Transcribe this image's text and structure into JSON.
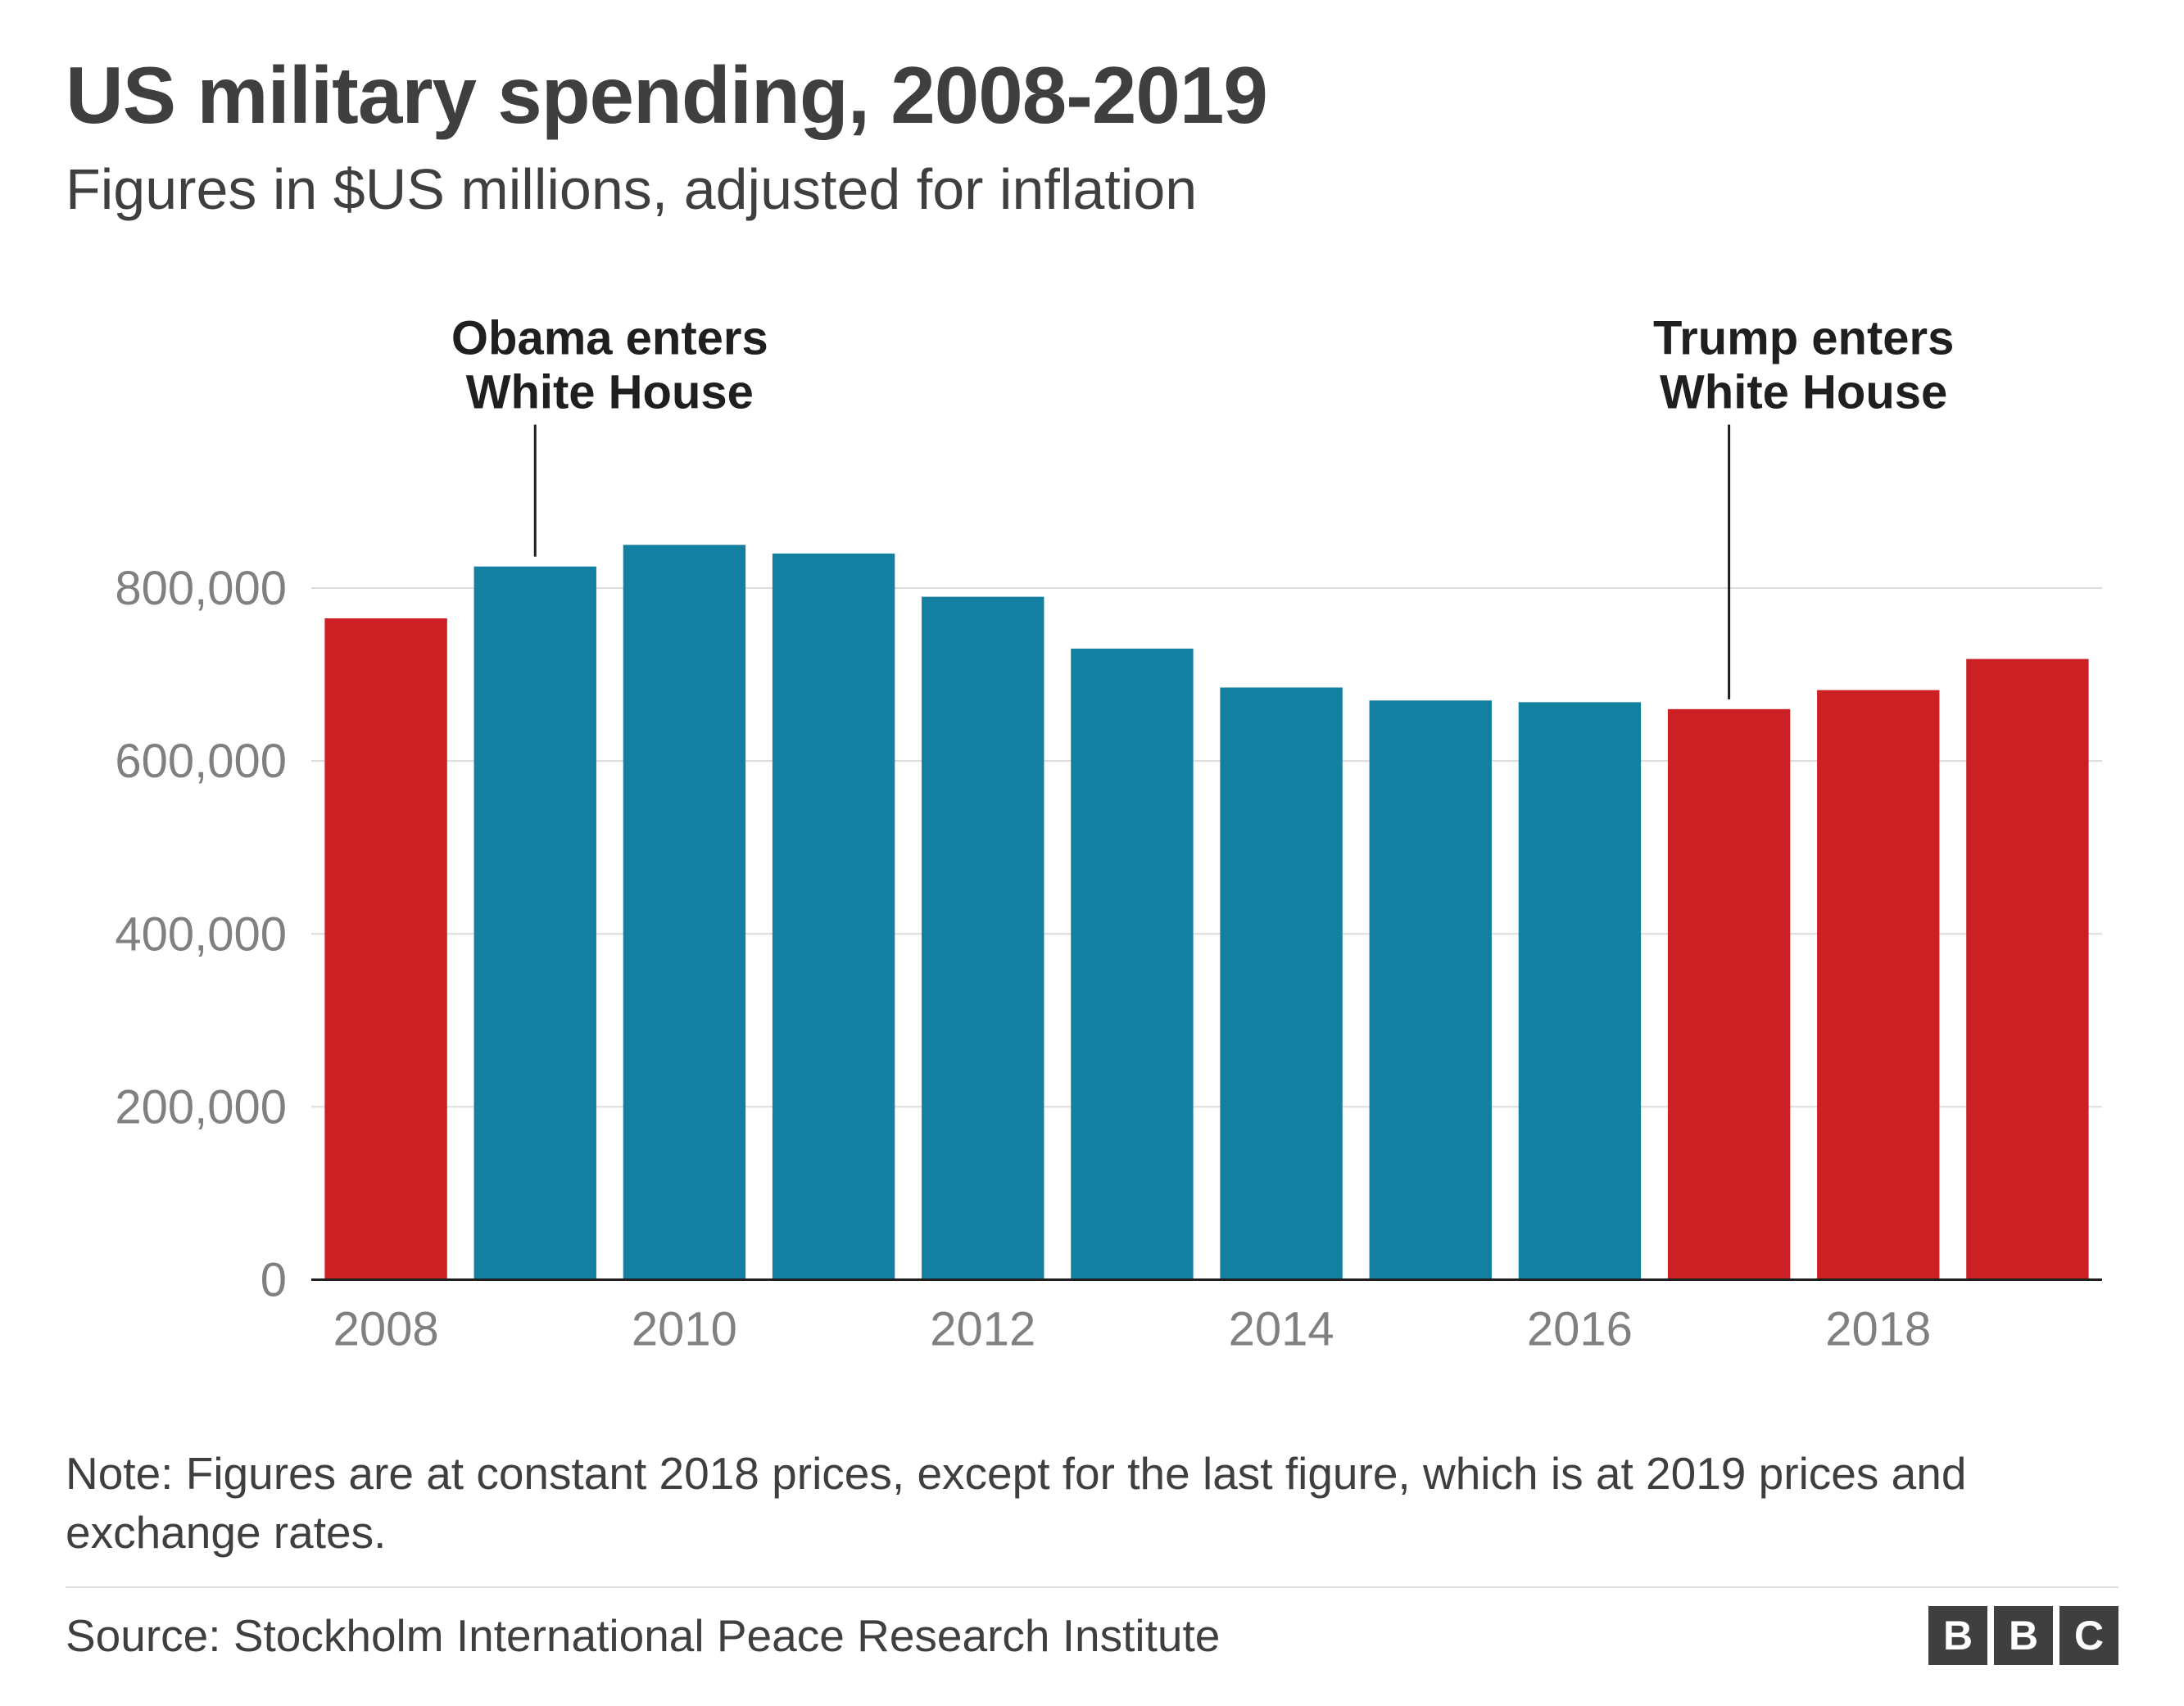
{
  "title": "US military spending, 2008-2019",
  "subtitle": "Figures in $US millions, adjusted for inflation",
  "note": "Note: Figures are at constant 2018 prices, except for the last figure, which is at 2019 prices and exchange rates.",
  "source": "Source: Stockholm International Peace Research Institute",
  "logo_letters": [
    "B",
    "B",
    "C"
  ],
  "chart": {
    "type": "bar",
    "years": [
      2008,
      2009,
      2010,
      2011,
      2012,
      2013,
      2014,
      2015,
      2016,
      2017,
      2018,
      2019
    ],
    "values": [
      765000,
      825000,
      850000,
      840000,
      790000,
      730000,
      685000,
      670000,
      668000,
      660000,
      682000,
      718000
    ],
    "bar_colors": [
      "#cb2024",
      "#1380a1",
      "#1380a1",
      "#1380a1",
      "#1380a1",
      "#1380a1",
      "#1380a1",
      "#1380a1",
      "#1380a1",
      "#cb2024",
      "#cb2024",
      "#cb2024"
    ],
    "ylim": [
      0,
      900000
    ],
    "yticks": [
      0,
      200000,
      400000,
      600000,
      800000
    ],
    "ytick_labels": [
      "0",
      "200,000",
      "400,000",
      "600,000",
      "800,000"
    ],
    "xtick_years": [
      2008,
      2010,
      2012,
      2014,
      2016,
      2018
    ],
    "xtick_labels": [
      "2008",
      "2010",
      "2012",
      "2014",
      "2016",
      "2018"
    ],
    "bar_gap_ratio": 0.18,
    "grid_color": "#dcdcdc",
    "axis_color": "#1f1f1f",
    "axis_label_color": "#808080",
    "background_color": "#ffffff",
    "title_fontsize": 98,
    "subtitle_fontsize": 70,
    "axis_fontsize": 58,
    "annot_fontsize": 58,
    "annotations": [
      {
        "lines": [
          "Obama enters",
          "White House"
        ],
        "target_year": 2009,
        "text_center_year": 2009.5
      },
      {
        "lines": [
          "Trump enters",
          "White House"
        ],
        "target_year": 2017,
        "text_center_year": 2017.5
      }
    ]
  }
}
